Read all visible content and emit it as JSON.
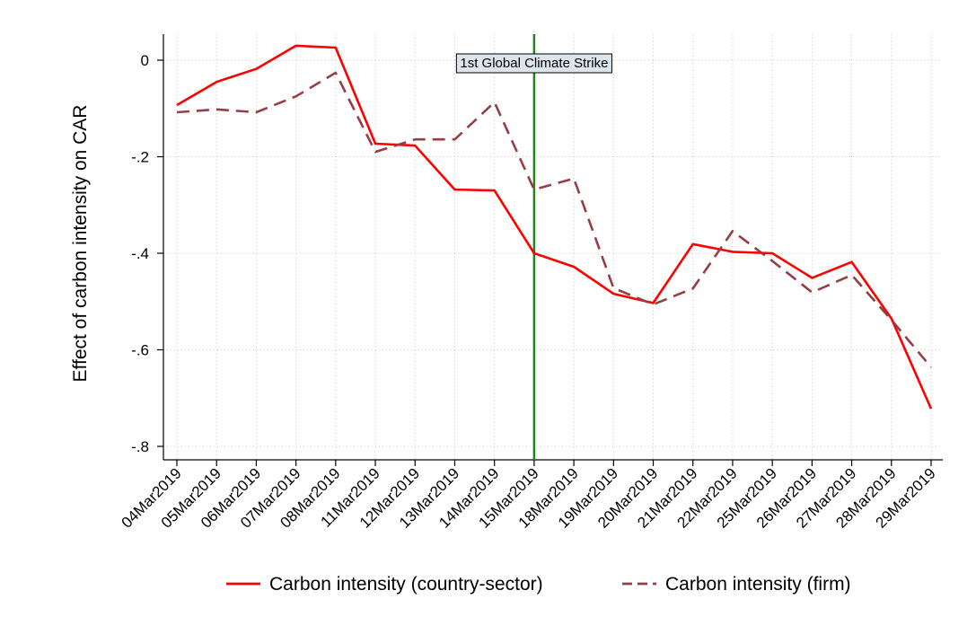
{
  "chart_data": {
    "type": "line",
    "title": "",
    "xlabel": "",
    "ylabel": "Effect of carbon intensity on CAR",
    "ylim": [
      -0.8,
      0.0
    ],
    "y_ticks": [
      0,
      -0.2,
      -0.4,
      -0.6,
      -0.8
    ],
    "y_tick_labels": [
      "0",
      "-.2",
      "-.4",
      "-.6",
      "-.8"
    ],
    "grid": true,
    "legend_position": "bottom",
    "categories": [
      "04Mar2019",
      "05Mar2019",
      "06Mar2019",
      "07Mar2019",
      "08Mar2019",
      "11Mar2019",
      "12Mar2019",
      "13Mar2019",
      "14Mar2019",
      "15Mar2019",
      "18Mar2019",
      "19Mar2019",
      "20Mar2019",
      "21Mar2019",
      "22Mar2019",
      "25Mar2019",
      "26Mar2019",
      "27Mar2019",
      "28Mar2019",
      "29Mar2019"
    ],
    "series": [
      {
        "name": "Carbon intensity (country-sector)",
        "color": "#ff0000",
        "style": "solid",
        "values": [
          -0.093,
          -0.045,
          -0.018,
          0.03,
          0.026,
          -0.173,
          -0.177,
          -0.268,
          -0.27,
          -0.4,
          -0.428,
          -0.484,
          -0.503,
          -0.381,
          -0.397,
          -0.4,
          -0.451,
          -0.418,
          -0.535,
          -0.722
        ]
      },
      {
        "name": "Carbon intensity (firm)",
        "color": "#953f45",
        "style": "dashed",
        "values": [
          -0.108,
          -0.102,
          -0.108,
          -0.075,
          -0.026,
          -0.19,
          -0.164,
          -0.164,
          -0.087,
          -0.268,
          -0.245,
          -0.472,
          -0.506,
          -0.473,
          -0.354,
          -0.416,
          -0.481,
          -0.445,
          -0.538,
          -0.636
        ]
      }
    ],
    "annotation": {
      "category": "15Mar2019",
      "label": "1st Global Climate Strike",
      "line_color": "#1a8a1a",
      "box_fill": "#dce6ea"
    }
  }
}
